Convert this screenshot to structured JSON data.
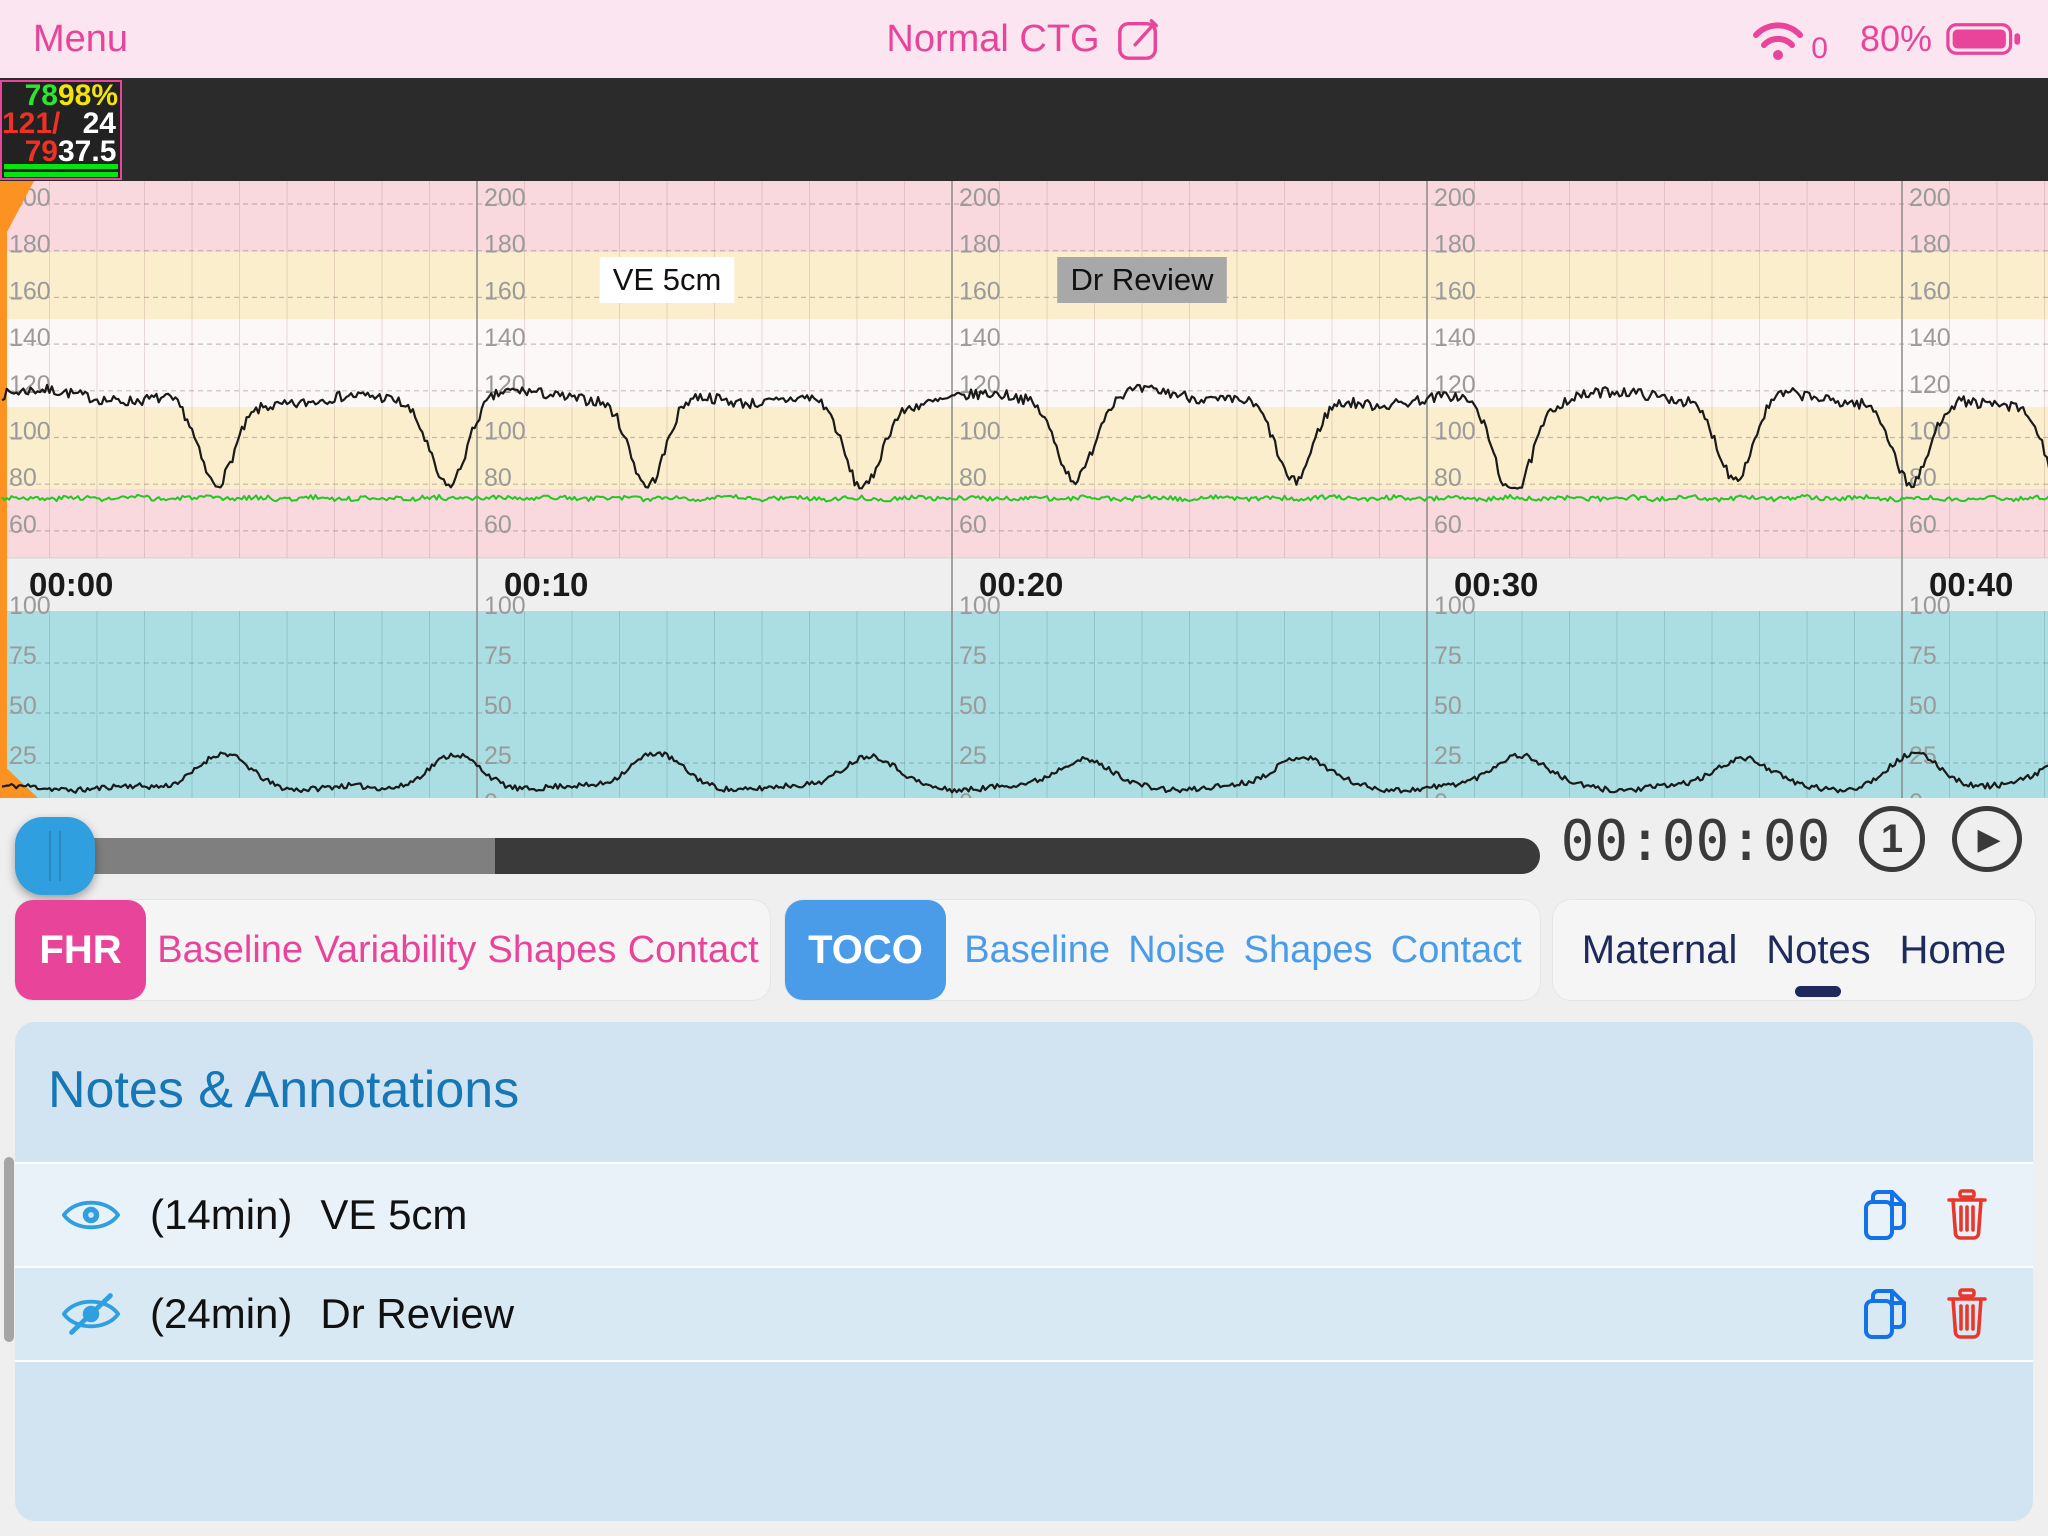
{
  "top_bar": {
    "menu_label": "Menu",
    "title": "Normal CTG",
    "wifi_label": "0",
    "battery_label": "80%"
  },
  "vitals": {
    "hr": "78",
    "spo2": "98%",
    "bp": "121/",
    "resp": "24",
    "pulse": "79",
    "temp": "37.5"
  },
  "chart_data": {
    "type": "line",
    "title": "",
    "x_unit": "minutes",
    "minutes_per_major_gridline": 10,
    "time_labels": [
      "00:00",
      "00:10",
      "00:20",
      "00:30",
      "00:40"
    ],
    "fhr": {
      "ylabels": [
        200,
        180,
        160,
        140,
        120,
        100,
        80,
        60
      ],
      "unit": "bpm",
      "baseline_bpm": 117,
      "deceleration_depth_bpm": 38,
      "deceleration_minutes": [
        4.5,
        9.4,
        13.6,
        18.1,
        22.6,
        27.2,
        31.8,
        36.5,
        40.2,
        43.4
      ]
    },
    "maternal_hr": {
      "baseline_bpm": 74
    },
    "toco": {
      "ylabels": [
        100,
        75,
        50,
        25,
        0
      ],
      "baseline": 12.5,
      "contraction_amplitude": 16.5,
      "contraction_minutes": [
        4.5,
        9.4,
        13.6,
        18.1,
        22.6,
        27.2,
        31.8,
        36.5,
        40.2,
        43.4
      ]
    },
    "annotations": [
      {
        "minute": 14,
        "label": "VE 5cm",
        "style": "white"
      },
      {
        "minute": 24,
        "label": "Dr Review",
        "style": "gray"
      }
    ]
  },
  "player": {
    "elapsed": "00:00:00",
    "speed": "1",
    "play_glyph": "▶"
  },
  "fhr_tabs": {
    "active": "FHR",
    "items": [
      "Baseline",
      "Variability",
      "Shapes",
      "Contact"
    ]
  },
  "toco_tabs": {
    "active": "TOCO",
    "items": [
      "Baseline",
      "Noise",
      "Shapes",
      "Contact"
    ]
  },
  "nav_tabs": {
    "active": "Notes",
    "items": [
      "Maternal",
      "Notes",
      "Home"
    ]
  },
  "notes": {
    "title": "Notes & Annotations",
    "rows": [
      {
        "visible": true,
        "time_label": "(14min)",
        "text": "VE 5cm"
      },
      {
        "visible": false,
        "time_label": "(24min)",
        "text": "Dr Review"
      }
    ]
  },
  "colors": {
    "accent_pink": "#e8459a",
    "accent_blue": "#4a9ce8",
    "navy": "#1e2a5c",
    "title_blue": "#1577b5",
    "copy_blue": "#1472e8",
    "trash_red": "#e8382d",
    "eye_blue": "#2f9fe0",
    "orange": "#fb9222",
    "topbar_pink": "#fbe5f0",
    "pink_band": "#f9d9de",
    "cream_band": "#fbeecd",
    "white_band": "#fdf8f8",
    "cyan_band": "#abdee3",
    "axis_band": "#efefef",
    "panel_blue": "#d2e4f1",
    "green_vital": "#2ee52e",
    "yellow_vital": "#f2e50c",
    "red_vital": "#f03024",
    "trace_black": "#1a1a1a",
    "trace_green": "#1ecb1e"
  }
}
